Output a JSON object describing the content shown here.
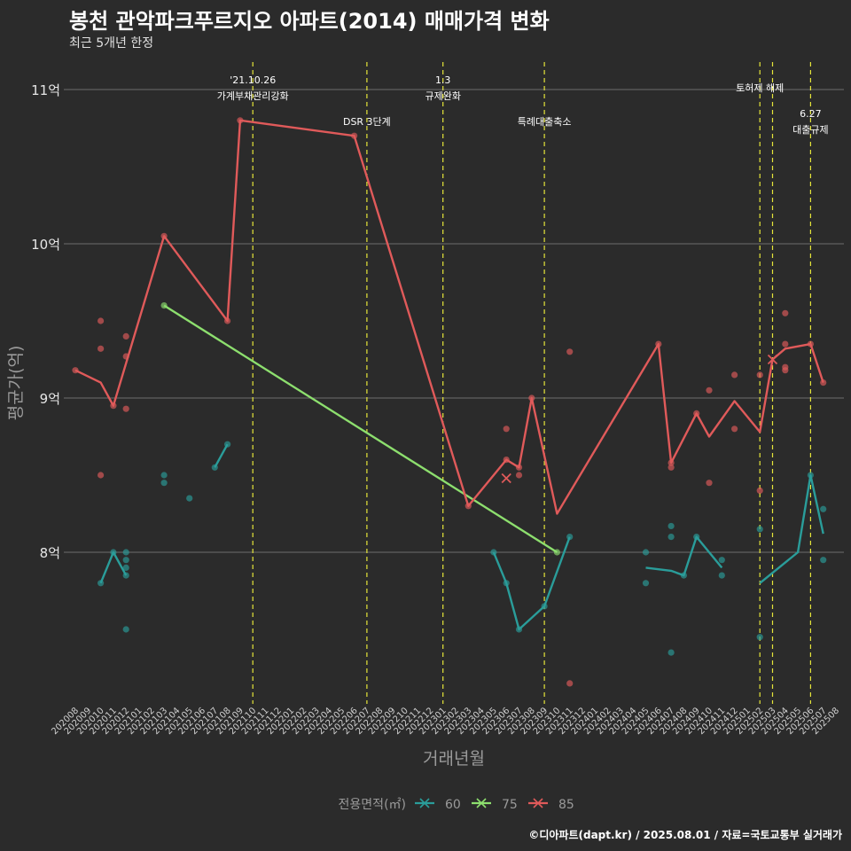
{
  "title": "봉천 관악파크푸르지오 아파트(2014) 매매가격 변화",
  "subtitle": "최근 5개년 한정",
  "caption": "©디아파트(dapt.kr) / 2025.08.01 / 자료=국토교통부 실거래가",
  "chart_data": {
    "type": "line",
    "xlabel": "거래년월",
    "ylabel": "평균가(억)",
    "ylim": [
      7.03,
      11.14
    ],
    "yticks": [
      8,
      9,
      10,
      11
    ],
    "ytick_labels": [
      "8억",
      "9억",
      "10억",
      "11억"
    ],
    "categories": [
      "202008",
      "202009",
      "202010",
      "202011",
      "202012",
      "202101",
      "202102",
      "202103",
      "202104",
      "202105",
      "202106",
      "202107",
      "202108",
      "202109",
      "202110",
      "202111",
      "202112",
      "202201",
      "202202",
      "202203",
      "202204",
      "202205",
      "202206",
      "202207",
      "202208",
      "202209",
      "202210",
      "202211",
      "202212",
      "202301",
      "202302",
      "202303",
      "202304",
      "202305",
      "202306",
      "202307",
      "202308",
      "202309",
      "202310",
      "202311",
      "202312",
      "202401",
      "202402",
      "202403",
      "202404",
      "202405",
      "202406",
      "202407",
      "202408",
      "202409",
      "202410",
      "202411",
      "202412",
      "202501",
      "202502",
      "202503",
      "202504",
      "202505",
      "202506",
      "202507",
      "202508"
    ],
    "legend": {
      "title": "전용면적(㎡)",
      "position": "bottom"
    },
    "series": [
      {
        "name": "60",
        "color": "#2a9d9a",
        "line": [
          {
            "x": "202010",
            "y": 7.8
          },
          {
            "x": "202011",
            "y": 8.0
          },
          {
            "x": "202012",
            "y": 7.85
          },
          {
            "x": "202107",
            "y": 8.55
          },
          {
            "x": "202108",
            "y": 8.7
          },
          {
            "x": "202305",
            "y": 8.0
          },
          {
            "x": "202306",
            "y": 7.8
          },
          {
            "x": "202307",
            "y": 7.5
          },
          {
            "x": "202309",
            "y": 7.65
          },
          {
            "x": "202311",
            "y": 8.1
          },
          {
            "x": "202405",
            "y": 7.9
          },
          {
            "x": "202407",
            "y": 7.88
          },
          {
            "x": "202408",
            "y": 7.85
          },
          {
            "x": "202409",
            "y": 8.1
          },
          {
            "x": "202411",
            "y": 7.9
          },
          {
            "x": "202502",
            "y": 7.8
          },
          {
            "x": "202505",
            "y": 8.0
          },
          {
            "x": "202506",
            "y": 8.5
          },
          {
            "x": "202507",
            "y": 8.12
          }
        ],
        "breaks_after": [
          "202012",
          "202108",
          "202311",
          "202411"
        ],
        "points": [
          {
            "x": "202010",
            "y": 7.8
          },
          {
            "x": "202011",
            "y": 8.0
          },
          {
            "x": "202012",
            "y": 8.0
          },
          {
            "x": "202012",
            "y": 7.95
          },
          {
            "x": "202012",
            "y": 7.9
          },
          {
            "x": "202012",
            "y": 7.85
          },
          {
            "x": "202012",
            "y": 7.5
          },
          {
            "x": "202103",
            "y": 8.5
          },
          {
            "x": "202103",
            "y": 8.45
          },
          {
            "x": "202105",
            "y": 8.35
          },
          {
            "x": "202107",
            "y": 8.55
          },
          {
            "x": "202108",
            "y": 8.7
          },
          {
            "x": "202305",
            "y": 8.0
          },
          {
            "x": "202306",
            "y": 7.8
          },
          {
            "x": "202307",
            "y": 7.5
          },
          {
            "x": "202309",
            "y": 7.65
          },
          {
            "x": "202311",
            "y": 8.1
          },
          {
            "x": "202405",
            "y": 8.0
          },
          {
            "x": "202405",
            "y": 7.8
          },
          {
            "x": "202407",
            "y": 8.17
          },
          {
            "x": "202407",
            "y": 8.1
          },
          {
            "x": "202407",
            "y": 7.35
          },
          {
            "x": "202408",
            "y": 7.85
          },
          {
            "x": "202409",
            "y": 8.1
          },
          {
            "x": "202411",
            "y": 7.95
          },
          {
            "x": "202411",
            "y": 7.85
          },
          {
            "x": "202502",
            "y": 8.15
          },
          {
            "x": "202502",
            "y": 7.45
          },
          {
            "x": "202506",
            "y": 8.5
          },
          {
            "x": "202507",
            "y": 8.28
          },
          {
            "x": "202507",
            "y": 7.95
          }
        ]
      },
      {
        "name": "75",
        "color": "#8ddf6e",
        "line": [
          {
            "x": "202103",
            "y": 9.6
          },
          {
            "x": "202310",
            "y": 8.0
          }
        ],
        "points": [
          {
            "x": "202103",
            "y": 9.6
          },
          {
            "x": "202310",
            "y": 8.0
          }
        ]
      },
      {
        "name": "85",
        "color": "#e05a5a",
        "line": [
          {
            "x": "202008",
            "y": 9.18
          },
          {
            "x": "202010",
            "y": 9.1
          },
          {
            "x": "202011",
            "y": 8.95
          },
          {
            "x": "202103",
            "y": 10.05
          },
          {
            "x": "202108",
            "y": 9.5
          },
          {
            "x": "202109",
            "y": 10.8
          },
          {
            "x": "202206",
            "y": 10.7
          },
          {
            "x": "202303",
            "y": 8.3
          },
          {
            "x": "202306",
            "y": 8.6
          },
          {
            "x": "202307",
            "y": 8.55
          },
          {
            "x": "202308",
            "y": 9.0
          },
          {
            "x": "202310",
            "y": 8.25
          },
          {
            "x": "202406",
            "y": 9.35
          },
          {
            "x": "202407",
            "y": 8.58
          },
          {
            "x": "202409",
            "y": 8.9
          },
          {
            "x": "202410",
            "y": 8.75
          },
          {
            "x": "202412",
            "y": 8.98
          },
          {
            "x": "202502",
            "y": 8.78
          },
          {
            "x": "202503",
            "y": 9.25
          },
          {
            "x": "202504",
            "y": 9.32
          },
          {
            "x": "202506",
            "y": 9.35
          },
          {
            "x": "202507",
            "y": 9.1
          }
        ],
        "points": [
          {
            "x": "202008",
            "y": 9.18
          },
          {
            "x": "202010",
            "y": 9.5
          },
          {
            "x": "202010",
            "y": 9.32
          },
          {
            "x": "202010",
            "y": 8.5
          },
          {
            "x": "202011",
            "y": 8.95
          },
          {
            "x": "202012",
            "y": 9.4
          },
          {
            "x": "202012",
            "y": 9.27
          },
          {
            "x": "202012",
            "y": 8.93
          },
          {
            "x": "202103",
            "y": 10.05
          },
          {
            "x": "202108",
            "y": 9.5
          },
          {
            "x": "202109",
            "y": 10.8
          },
          {
            "x": "202206",
            "y": 10.7
          },
          {
            "x": "202303",
            "y": 8.3
          },
          {
            "x": "202306",
            "y": 8.8
          },
          {
            "x": "202306",
            "y": 8.6
          },
          {
            "x": "202307",
            "y": 8.55
          },
          {
            "x": "202307",
            "y": 8.5
          },
          {
            "x": "202308",
            "y": 9.0
          },
          {
            "x": "202311",
            "y": 9.3
          },
          {
            "x": "202311",
            "y": 7.15
          },
          {
            "x": "202406",
            "y": 9.35
          },
          {
            "x": "202407",
            "y": 8.58
          },
          {
            "x": "202407",
            "y": 8.55
          },
          {
            "x": "202409",
            "y": 8.9
          },
          {
            "x": "202410",
            "y": 9.05
          },
          {
            "x": "202410",
            "y": 8.45
          },
          {
            "x": "202412",
            "y": 9.15
          },
          {
            "x": "202412",
            "y": 8.8
          },
          {
            "x": "202502",
            "y": 9.15
          },
          {
            "x": "202502",
            "y": 8.4
          },
          {
            "x": "202504",
            "y": 9.55
          },
          {
            "x": "202504",
            "y": 9.35
          },
          {
            "x": "202504",
            "y": 9.2
          },
          {
            "x": "202504",
            "y": 9.18
          },
          {
            "x": "202506",
            "y": 9.35
          },
          {
            "x": "202507",
            "y": 9.1
          }
        ],
        "cross_markers": [
          {
            "x": "202306",
            "y": 8.48
          },
          {
            "x": "202503",
            "y": 9.25
          }
        ]
      }
    ],
    "annotations": [
      {
        "x": "202110",
        "lines": [
          "'21.10.26",
          "가계부채관리강화"
        ],
        "level": "top"
      },
      {
        "x": "202207",
        "lines": [
          "DSR 3단계"
        ],
        "level": "low"
      },
      {
        "x": "202301",
        "lines": [
          "1.3",
          "규제완화"
        ],
        "level": "top"
      },
      {
        "x": "202309",
        "lines": [
          "특례대출축소"
        ],
        "level": "low"
      },
      {
        "x": "202502",
        "lines": [
          "토허제 해제"
        ],
        "level": "mid"
      },
      {
        "x": "202503",
        "lines": [],
        "level": "none"
      },
      {
        "x": "202506",
        "lines": [
          "6.27",
          "대출규제"
        ],
        "level": "low2"
      }
    ]
  }
}
